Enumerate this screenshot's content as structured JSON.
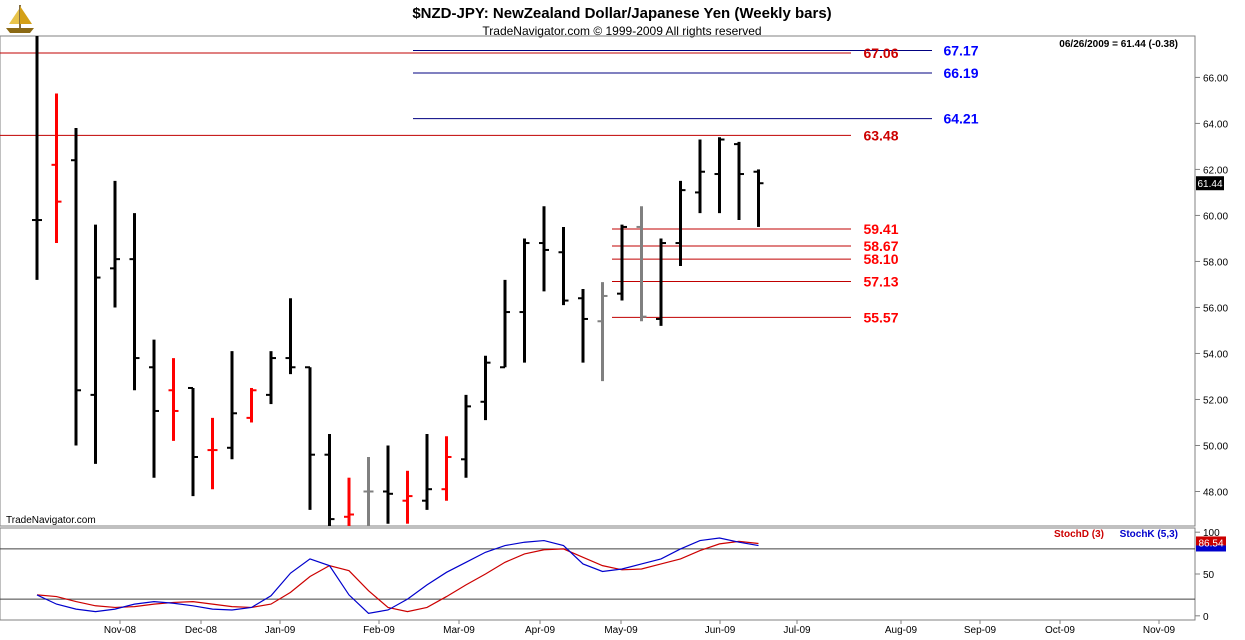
{
  "header": {
    "title": "$NZD-JPY:  NewZealand Dollar/Japanese Yen  (Weekly bars)",
    "subtitle": "TradeNavigator.com © 1999-2009 All rights reserved",
    "last_quote": "06/26/2009 = 61.44 (-0.38)",
    "watermark": "TradeNavigator.com",
    "logo_icon": "sailing-ship-icon"
  },
  "colors": {
    "up_bar": "#000000",
    "down_bar": "#ff0000",
    "neutral_bar": "#808080",
    "resistance_line": "#c00000",
    "target_line": "#000080",
    "fib_label": "#ff0000",
    "target_label": "#0000ff",
    "stoch_d": "#cc0000",
    "stoch_k": "#0000cc"
  },
  "chart_data": [
    {
      "type": "ohlc",
      "ylim": [
        46.5,
        67.8
      ],
      "yticks": [
        48,
        50,
        52,
        54,
        56,
        58,
        60,
        62,
        64,
        66
      ],
      "ytick_labels": [
        "48.00",
        "50.00",
        "52.00",
        "54.00",
        "56.00",
        "58.00",
        "60.00",
        "62.00",
        "64.00",
        "66.00"
      ],
      "last_value_label": "61.44",
      "xtick_labels": [
        "Nov-08",
        "Dec-08",
        "Jan-09",
        "Feb-09",
        "Mar-09",
        "Apr-09",
        "May-09",
        "Jun-09",
        "Jul-09",
        "Aug-09",
        "Sep-09",
        "Oct-09",
        "Nov-09"
      ],
      "bars": [
        {
          "o": 59.8,
          "h": 67.8,
          "l": 57.2,
          "c": 59.8,
          "col": "up"
        },
        {
          "o": 62.2,
          "h": 65.3,
          "l": 58.8,
          "c": 60.6,
          "col": "down"
        },
        {
          "o": 62.4,
          "h": 63.8,
          "l": 50.0,
          "c": 52.4,
          "col": "up"
        },
        {
          "o": 52.2,
          "h": 59.6,
          "l": 49.2,
          "c": 57.3,
          "col": "up"
        },
        {
          "o": 57.7,
          "h": 61.5,
          "l": 56.0,
          "c": 58.1,
          "col": "up"
        },
        {
          "o": 58.1,
          "h": 60.1,
          "l": 52.4,
          "c": 53.8,
          "col": "up"
        },
        {
          "o": 53.4,
          "h": 54.6,
          "l": 48.6,
          "c": 51.5,
          "col": "up"
        },
        {
          "o": 52.4,
          "h": 53.8,
          "l": 50.2,
          "c": 51.5,
          "col": "down"
        },
        {
          "o": 52.5,
          "h": 52.5,
          "l": 47.8,
          "c": 49.5,
          "col": "up"
        },
        {
          "o": 49.8,
          "h": 51.2,
          "l": 48.1,
          "c": 49.8,
          "col": "down"
        },
        {
          "o": 49.9,
          "h": 54.1,
          "l": 49.4,
          "c": 51.4,
          "col": "up"
        },
        {
          "o": 51.2,
          "h": 52.5,
          "l": 51.0,
          "c": 52.4,
          "col": "down"
        },
        {
          "o": 52.2,
          "h": 54.1,
          "l": 51.8,
          "c": 53.8,
          "col": "up"
        },
        {
          "o": 53.8,
          "h": 56.4,
          "l": 53.1,
          "c": 53.4,
          "col": "up"
        },
        {
          "o": 53.4,
          "h": 53.4,
          "l": 47.2,
          "c": 49.6,
          "col": "up"
        },
        {
          "o": 49.6,
          "h": 50.5,
          "l": 46.5,
          "c": 46.8,
          "col": "up"
        },
        {
          "o": 46.9,
          "h": 48.6,
          "l": 46.5,
          "c": 47.0,
          "col": "down"
        },
        {
          "o": 48.0,
          "h": 49.5,
          "l": 46.5,
          "c": 48.0,
          "col": "neutral"
        },
        {
          "o": 48.0,
          "h": 50.0,
          "l": 46.6,
          "c": 47.9,
          "col": "up"
        },
        {
          "o": 47.6,
          "h": 48.9,
          "l": 46.6,
          "c": 47.8,
          "col": "down"
        },
        {
          "o": 47.6,
          "h": 50.5,
          "l": 47.2,
          "c": 48.1,
          "col": "up"
        },
        {
          "o": 48.1,
          "h": 50.4,
          "l": 47.6,
          "c": 49.5,
          "col": "down"
        },
        {
          "o": 49.4,
          "h": 52.2,
          "l": 48.6,
          "c": 51.7,
          "col": "up"
        },
        {
          "o": 51.9,
          "h": 53.9,
          "l": 51.1,
          "c": 53.6,
          "col": "up"
        },
        {
          "o": 53.4,
          "h": 57.2,
          "l": 53.4,
          "c": 55.8,
          "col": "up"
        },
        {
          "o": 55.8,
          "h": 59.0,
          "l": 53.6,
          "c": 58.8,
          "col": "up"
        },
        {
          "o": 58.8,
          "h": 60.4,
          "l": 56.7,
          "c": 58.5,
          "col": "up"
        },
        {
          "o": 58.4,
          "h": 59.5,
          "l": 56.1,
          "c": 56.3,
          "col": "up"
        },
        {
          "o": 56.4,
          "h": 56.8,
          "l": 53.6,
          "c": 55.5,
          "col": "up"
        },
        {
          "o": 55.4,
          "h": 57.1,
          "l": 52.8,
          "c": 56.5,
          "col": "neutral"
        },
        {
          "o": 56.6,
          "h": 59.6,
          "l": 56.3,
          "c": 59.5,
          "col": "up"
        },
        {
          "o": 59.5,
          "h": 60.4,
          "l": 55.4,
          "c": 55.6,
          "col": "neutral"
        },
        {
          "o": 55.5,
          "h": 59.0,
          "l": 55.2,
          "c": 58.8,
          "col": "up"
        },
        {
          "o": 58.8,
          "h": 61.5,
          "l": 57.8,
          "c": 61.1,
          "col": "up"
        },
        {
          "o": 61.0,
          "h": 63.3,
          "l": 60.1,
          "c": 61.9,
          "col": "up"
        },
        {
          "o": 61.8,
          "h": 63.4,
          "l": 60.1,
          "c": 63.3,
          "col": "up"
        },
        {
          "o": 63.1,
          "h": 63.2,
          "l": 59.8,
          "c": 61.8,
          "col": "up"
        },
        {
          "o": 61.9,
          "h": 62.0,
          "l": 59.5,
          "c": 61.4,
          "col": "up"
        }
      ],
      "levels": [
        {
          "value": 67.17,
          "label": "67.17",
          "kind": "target"
        },
        {
          "value": 67.06,
          "label": "67.06",
          "kind": "resistance"
        },
        {
          "value": 66.19,
          "label": "66.19",
          "kind": "target"
        },
        {
          "value": 64.21,
          "label": "64.21",
          "kind": "target"
        },
        {
          "value": 63.48,
          "label": "63.48",
          "kind": "resistance"
        },
        {
          "value": 59.41,
          "label": "59.41",
          "kind": "fib"
        },
        {
          "value": 58.67,
          "label": "58.67",
          "kind": "fib"
        },
        {
          "value": 58.1,
          "label": "58.10",
          "kind": "fib"
        },
        {
          "value": 57.13,
          "label": "57.13",
          "kind": "fib"
        },
        {
          "value": 55.57,
          "label": "55.57",
          "kind": "fib"
        }
      ]
    },
    {
      "type": "line",
      "ylim": [
        -5,
        105
      ],
      "yticks": [
        0,
        50,
        100
      ],
      "ytick_labels": [
        "0",
        "50",
        "100"
      ],
      "reference_lines": [
        20,
        80
      ],
      "last_value_label": "86.54",
      "series": [
        {
          "name": "StochD (3)",
          "values": [
            25,
            23,
            17,
            12,
            10,
            11,
            14,
            16,
            17,
            14,
            11,
            10,
            14,
            28,
            47,
            60,
            54,
            30,
            10,
            5,
            10,
            23,
            37,
            50,
            64,
            74,
            79,
            80,
            70,
            60,
            55,
            56,
            62,
            68,
            78,
            86,
            89,
            86.5
          ]
        },
        {
          "name": "StochK (5,3)",
          "values": [
            25,
            14,
            8,
            5,
            8,
            14,
            17,
            15,
            12,
            8,
            7,
            10,
            24,
            51,
            68,
            60,
            25,
            3,
            7,
            20,
            37,
            52,
            64,
            76,
            84,
            88,
            90,
            84,
            62,
            53,
            56,
            62,
            68,
            80,
            90,
            93,
            88,
            84
          ]
        }
      ]
    }
  ]
}
